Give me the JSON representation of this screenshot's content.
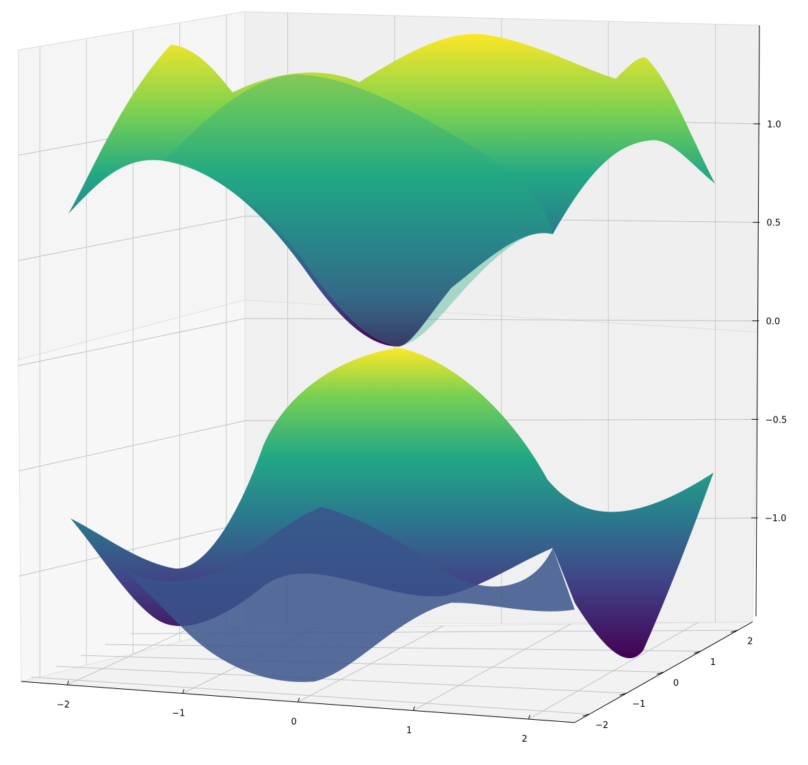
{
  "chart_data": {
    "type": "surface",
    "title": "",
    "xlabel": "",
    "ylabel": "",
    "zlabel": "",
    "colormap": "viridis",
    "grid": true,
    "x_ticks": [
      -2,
      -1,
      0,
      1,
      2
    ],
    "y_ticks": [
      -2,
      -1,
      0,
      1,
      2
    ],
    "z_ticks": [
      -1.0,
      -0.5,
      0.0,
      0.5,
      1.0
    ],
    "x_tick_labels": [
      "−2",
      "−1",
      "0",
      "1",
      "2"
    ],
    "y_tick_labels": [
      "−2",
      "−1",
      "0",
      "1",
      "2"
    ],
    "z_tick_labels": [
      "−1.0",
      "−0.5",
      "0.0",
      "0.5",
      "1.0"
    ],
    "xlim": [
      -2.4,
      2.4
    ],
    "ylim": [
      -2.4,
      2.4
    ],
    "zlim": [
      -1.5,
      1.5
    ],
    "surfaces": [
      {
        "name": "",
        "sign": 1,
        "z_min": 0.05,
        "z_max": 1.45
      },
      {
        "name": "",
        "sign": -1,
        "z_min": -1.45,
        "z_max": -0.05
      }
    ],
    "pane_color": "#f2f2f2",
    "grid_color": "#b0b0b0"
  }
}
